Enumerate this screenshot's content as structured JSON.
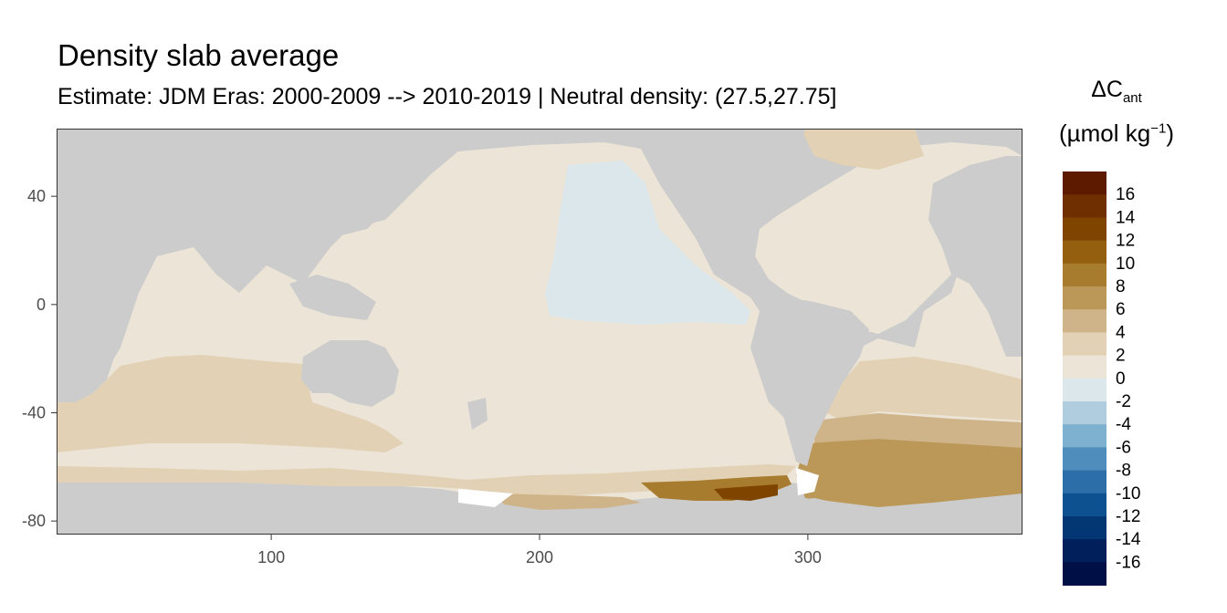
{
  "title": "Density slab average",
  "subtitle": "Estimate: JDM Eras: 2000-2009 --> 2010-2019 | Neutral density: (27.5,27.75]",
  "legend": {
    "title_symbol": "ΔC",
    "title_subscript": "ant",
    "unit_open": "(",
    "unit_text": "µmol kg",
    "unit_superscript": "−1",
    "unit_close": ")",
    "bins": [
      {
        "label": "16",
        "color": "#5e1a00"
      },
      {
        "label": "14",
        "color": "#6f2f00"
      },
      {
        "label": "12",
        "color": "#7f4500"
      },
      {
        "label": "10",
        "color": "#94600f"
      },
      {
        "label": "8",
        "color": "#a87c2e"
      },
      {
        "label": "6",
        "color": "#bb9858"
      },
      {
        "label": "4",
        "color": "#cfb489"
      },
      {
        "label": "2",
        "color": "#e2d1b4"
      },
      {
        "label": "0",
        "color": "#ece5d7"
      },
      {
        "label": "-2",
        "color": "#dce7ec"
      },
      {
        "label": "-4",
        "color": "#b0cde0"
      },
      {
        "label": "-6",
        "color": "#7eb0cf"
      },
      {
        "label": "-8",
        "color": "#4f8dbc"
      },
      {
        "label": "-10",
        "color": "#2c6ea7"
      },
      {
        "label": "-12",
        "color": "#0d5190"
      },
      {
        "label": "-14",
        "color": "#023774"
      },
      {
        "label": "-16",
        "color": "#011f5b"
      },
      {
        "label": "",
        "color": "#010f47"
      }
    ]
  },
  "map": {
    "x_ticks": [
      100,
      200,
      300
    ],
    "y_ticks": [
      40,
      0,
      -40,
      -80
    ],
    "xlim": [
      20,
      380
    ],
    "ylim": [
      -85,
      65
    ],
    "land_color": "#cccccc",
    "nodata_color": "#ffffff",
    "border_color": "#333333"
  }
}
